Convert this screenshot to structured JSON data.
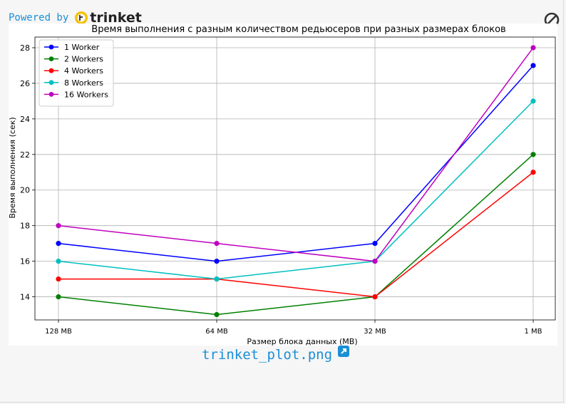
{
  "header": {
    "powered_label": "Powered by",
    "brand_name": "trinket"
  },
  "footer": {
    "file_name": "trinket_plot.png"
  },
  "icons": {
    "brand": "trinket-logo-icon",
    "stop": "stop-icon",
    "open_external": "open-external-icon"
  },
  "colors": {
    "link": "#1a8fd6",
    "background": "#f6f6f6"
  },
  "chart_data": {
    "type": "line",
    "title": "Время выполнения с разным количеством редьюсеров при разных размерах блоков",
    "xlabel": "Размер блока данных (МВ)",
    "ylabel": "Время выполнения (сек)",
    "categories": [
      "128 MB",
      "64 MB",
      "32 MB",
      "1 MB"
    ],
    "ylim": [
      12.7,
      28.6
    ],
    "yticks": [
      14,
      16,
      18,
      20,
      22,
      24,
      26,
      28
    ],
    "grid": true,
    "legend_position": "top-left",
    "series": [
      {
        "name": "1 Worker",
        "color": "#0000ff",
        "values": [
          17,
          16,
          17,
          27
        ]
      },
      {
        "name": "2 Workers",
        "color": "#008000",
        "values": [
          14,
          13,
          14,
          22
        ]
      },
      {
        "name": "4 Workers",
        "color": "#ff0000",
        "values": [
          15,
          15,
          14,
          21
        ]
      },
      {
        "name": "8 Workers",
        "color": "#00bfbf",
        "values": [
          16,
          15,
          16,
          25
        ]
      },
      {
        "name": "16 Workers",
        "color": "#bf00bf",
        "values": [
          18,
          17,
          16,
          28
        ]
      }
    ]
  }
}
